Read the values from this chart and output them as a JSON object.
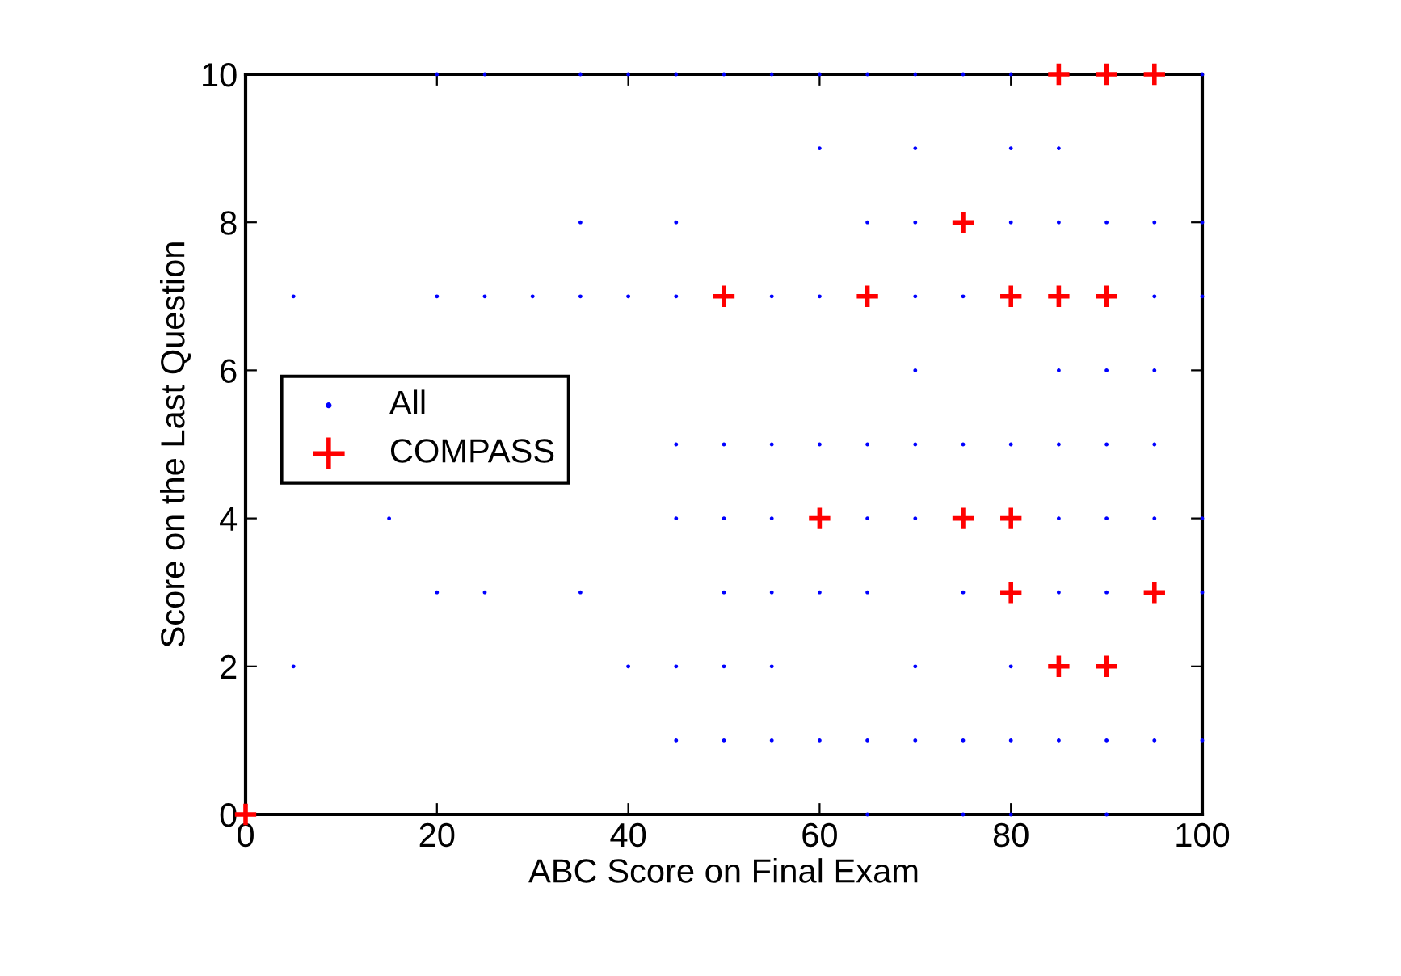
{
  "chart_data": {
    "type": "scatter",
    "xlabel": "ABC Score on Final Exam",
    "ylabel": "Score on the Last Question",
    "xlim": [
      0,
      100
    ],
    "ylim": [
      0,
      10
    ],
    "xticks": [
      0,
      20,
      40,
      60,
      80,
      100
    ],
    "yticks": [
      0,
      2,
      4,
      6,
      8,
      10
    ],
    "grid": false,
    "legend": "left",
    "series": [
      {
        "name": "All",
        "color": "#0000ff",
        "marker": "circle",
        "x": [
          20,
          25,
          35,
          40,
          45,
          50,
          55,
          60,
          65,
          70,
          75,
          80,
          100,
          60,
          70,
          80,
          85,
          35,
          45,
          65,
          70,
          80,
          85,
          90,
          95,
          100,
          5,
          20,
          25,
          30,
          35,
          40,
          45,
          55,
          60,
          70,
          75,
          95,
          100,
          70,
          85,
          90,
          95,
          45,
          50,
          55,
          60,
          65,
          70,
          75,
          80,
          85,
          90,
          95,
          15,
          45,
          50,
          55,
          65,
          70,
          85,
          90,
          95,
          100,
          20,
          25,
          35,
          50,
          55,
          60,
          65,
          75,
          85,
          90,
          100,
          5,
          40,
          45,
          50,
          55,
          70,
          80,
          45,
          50,
          55,
          60,
          65,
          70,
          75,
          80,
          85,
          90,
          95,
          100,
          65,
          75,
          80,
          90
        ],
        "values": [
          10,
          10,
          10,
          10,
          10,
          10,
          10,
          10,
          10,
          10,
          10,
          10,
          10,
          9,
          9,
          9,
          9,
          8,
          8,
          8,
          8,
          8,
          8,
          8,
          8,
          8,
          7,
          7,
          7,
          7,
          7,
          7,
          7,
          7,
          7,
          7,
          7,
          7,
          7,
          6,
          6,
          6,
          6,
          5,
          5,
          5,
          5,
          5,
          5,
          5,
          5,
          5,
          5,
          5,
          4,
          4,
          4,
          4,
          4,
          4,
          4,
          4,
          4,
          4,
          3,
          3,
          3,
          3,
          3,
          3,
          3,
          3,
          3,
          3,
          3,
          2,
          2,
          2,
          2,
          2,
          2,
          2,
          1,
          1,
          1,
          1,
          1,
          1,
          1,
          1,
          1,
          1,
          1,
          1,
          0,
          0,
          0,
          0
        ]
      },
      {
        "name": "COMPASS",
        "color": "#ff0000",
        "marker": "cross",
        "x": [
          85,
          90,
          95,
          75,
          50,
          65,
          80,
          85,
          90,
          60,
          75,
          80,
          80,
          95,
          85,
          90,
          0
        ],
        "values": [
          10,
          10,
          10,
          8,
          7,
          7,
          7,
          7,
          7,
          4,
          4,
          4,
          3,
          3,
          2,
          2,
          0
        ]
      }
    ]
  }
}
